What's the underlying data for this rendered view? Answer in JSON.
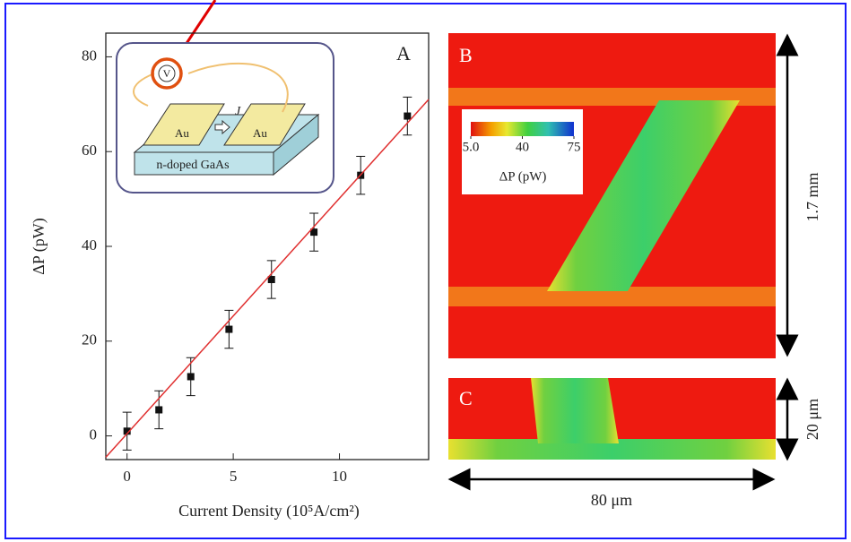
{
  "chart_data": {
    "type": "scatter",
    "panel_label": "A",
    "xlabel": "Current Density (10⁵A/cm²)",
    "ylabel": "ΔP (pW)",
    "xlim": [
      -1,
      14.2
    ],
    "ylim": [
      -5,
      85
    ],
    "xticks": [
      0,
      5,
      10
    ],
    "yticks": [
      0,
      20,
      40,
      60,
      80
    ],
    "series": [
      {
        "type": "scatter",
        "color": "#111111",
        "x": [
          0,
          1.5,
          3,
          4.8,
          6.8,
          8.8,
          11,
          13.2
        ],
        "values": [
          1,
          5.5,
          12.5,
          22.5,
          33,
          43,
          55,
          67.5
        ],
        "errors": [
          4,
          4,
          4,
          4,
          4,
          4,
          4,
          4
        ]
      },
      {
        "type": "line",
        "color": "#e03030",
        "x": [
          -1,
          14.2
        ],
        "values": [
          -4.5,
          71
        ]
      }
    ],
    "inset": {
      "meter": "V",
      "current": "J",
      "pad_left": "Au",
      "pad_right": "Au",
      "substrate": "n-doped GaAs"
    }
  },
  "panels": {
    "B": {
      "label": "B",
      "colorbar": {
        "clim": [
          5,
          75
        ],
        "ticks": [
          {
            "value": 5,
            "label": "5.0"
          },
          40,
          75
        ],
        "label": "ΔP (pW)"
      },
      "scale": "1.7 mm"
    },
    "C": {
      "label": "C",
      "scale_vertical": "20 μm",
      "scale_horizontal": "80 μm"
    }
  }
}
